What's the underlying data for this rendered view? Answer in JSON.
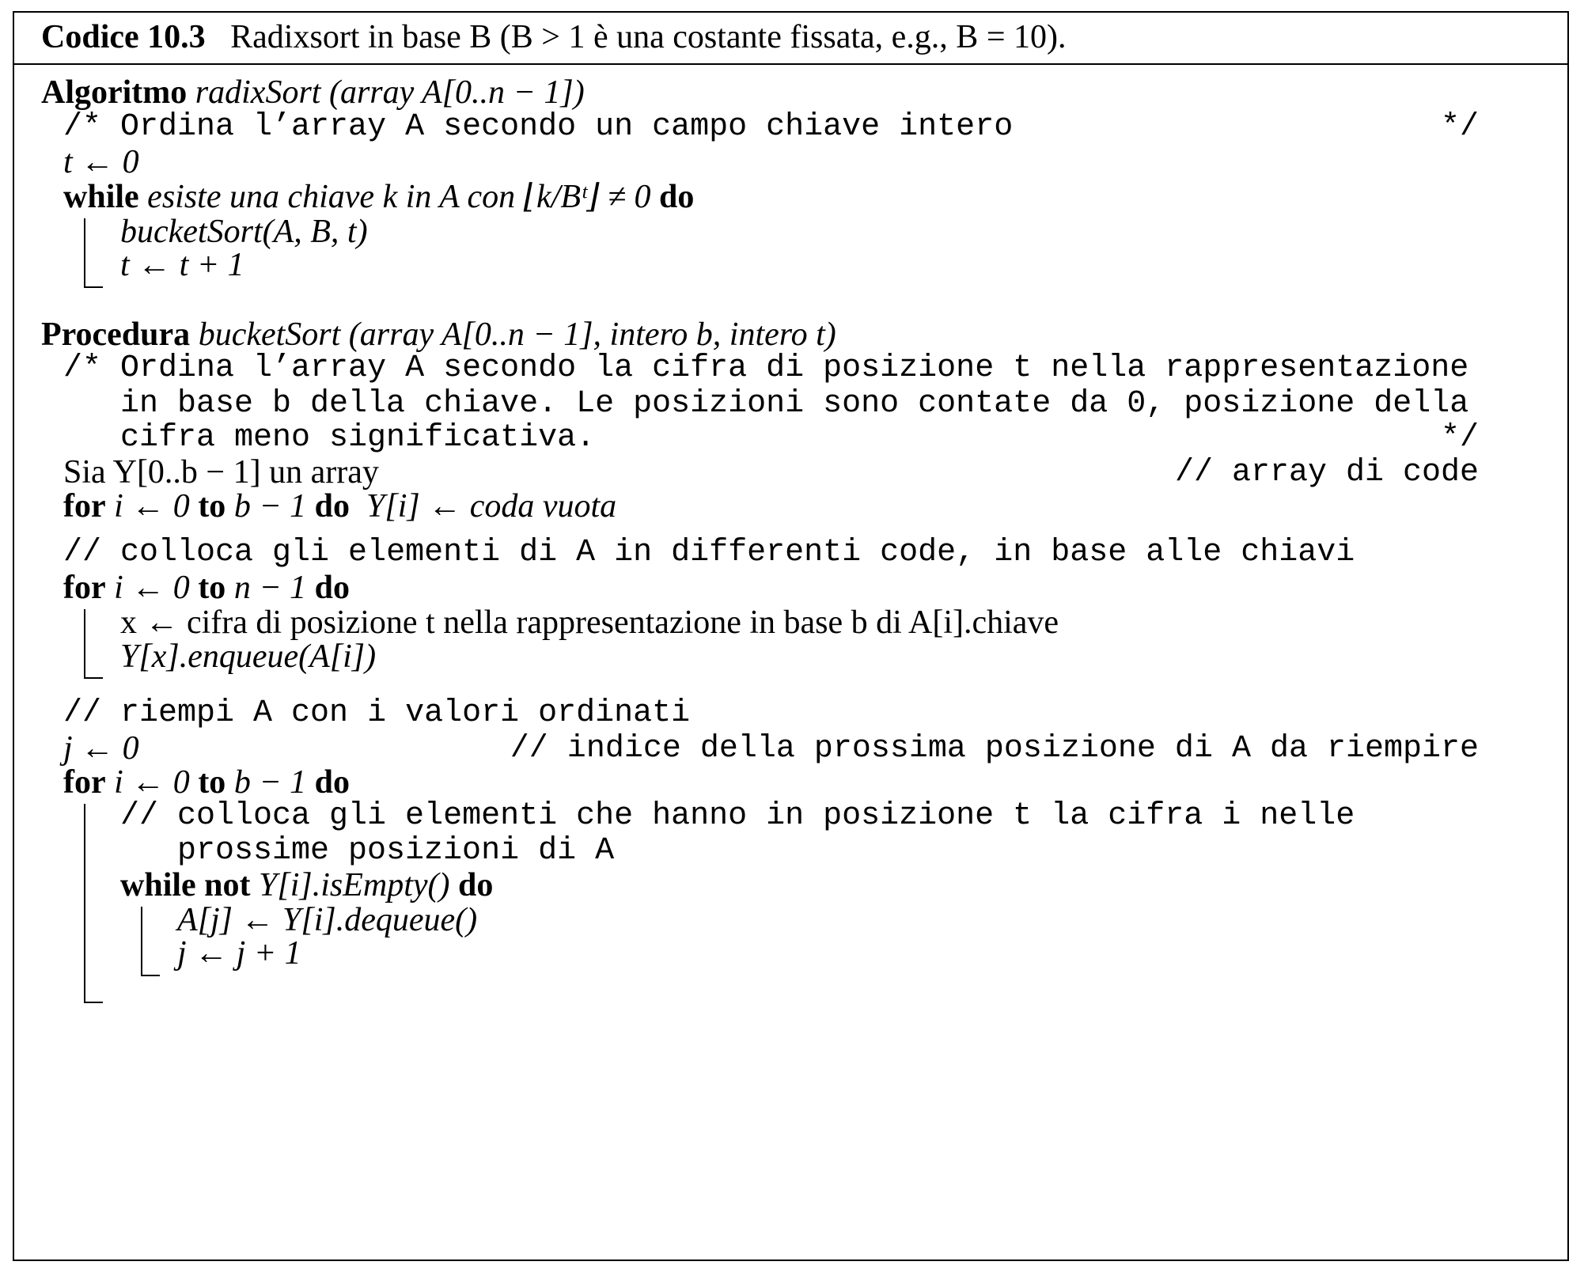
{
  "caption": {
    "label": "Codice 10.3",
    "text": "Radixsort in base B (B > 1 è una costante fissata, e.g., B = 10)."
  },
  "algo1": {
    "kw": "Algoritmo",
    "signature": "radixSort (array A[0..n − 1])",
    "comment": "/* Ordina l’array A secondo un campo chiave intero",
    "comment_end": "*/",
    "init": "t ← 0",
    "while_kw": "while",
    "while_cond": "esiste una chiave k in A con ⌊k/Bᵗ⌋ ≠ 0",
    "do_kw": "do",
    "body": [
      "bucketSort(A, B, t)",
      "t ← t + 1"
    ]
  },
  "algo2": {
    "kw": "Procedura",
    "signature": "bucketSort (array A[0..n − 1], intero b, intero t)",
    "comment": [
      "/* Ordina l’array A secondo la cifra di posizione t nella rappresentazione",
      "in base b della chiave.  Le posizioni sono contate da 0, posizione della",
      "cifra meno significativa."
    ],
    "comment_end": "*/",
    "sia": "Sia Y[0..b − 1] un array",
    "sia_comment": "// array di code",
    "for1_kw": "for",
    "for1_range": "i ← 0",
    "to_kw": "to",
    "for1_end": "b − 1",
    "for1_stmt": "Y[i] ← coda vuota",
    "c2": "// colloca gli elementi di A in differenti code, in base alle chiavi",
    "for2_range": "i ← 0",
    "for2_end": "n − 1",
    "for2_body": [
      "x ← cifra di posizione t nella rappresentazione in base b di A[i].chiave",
      "Y[x].enqueue(A[i])"
    ],
    "c3": "// riempi A con i valori ordinati",
    "j_init": "j ← 0",
    "j_comment": "// indice della prossima posizione di A da riempire",
    "for3_range": "i ← 0",
    "for3_end": "b − 1",
    "inner_comment": [
      "// colloca gli elementi che hanno in posizione t la cifra i nelle",
      "prossime posizioni di A"
    ],
    "while_kw": "while not",
    "while_cond": "Y[i].isEmpty()",
    "while_body": [
      "A[j] ← Y[i].dequeue()",
      "j ← j + 1"
    ]
  }
}
